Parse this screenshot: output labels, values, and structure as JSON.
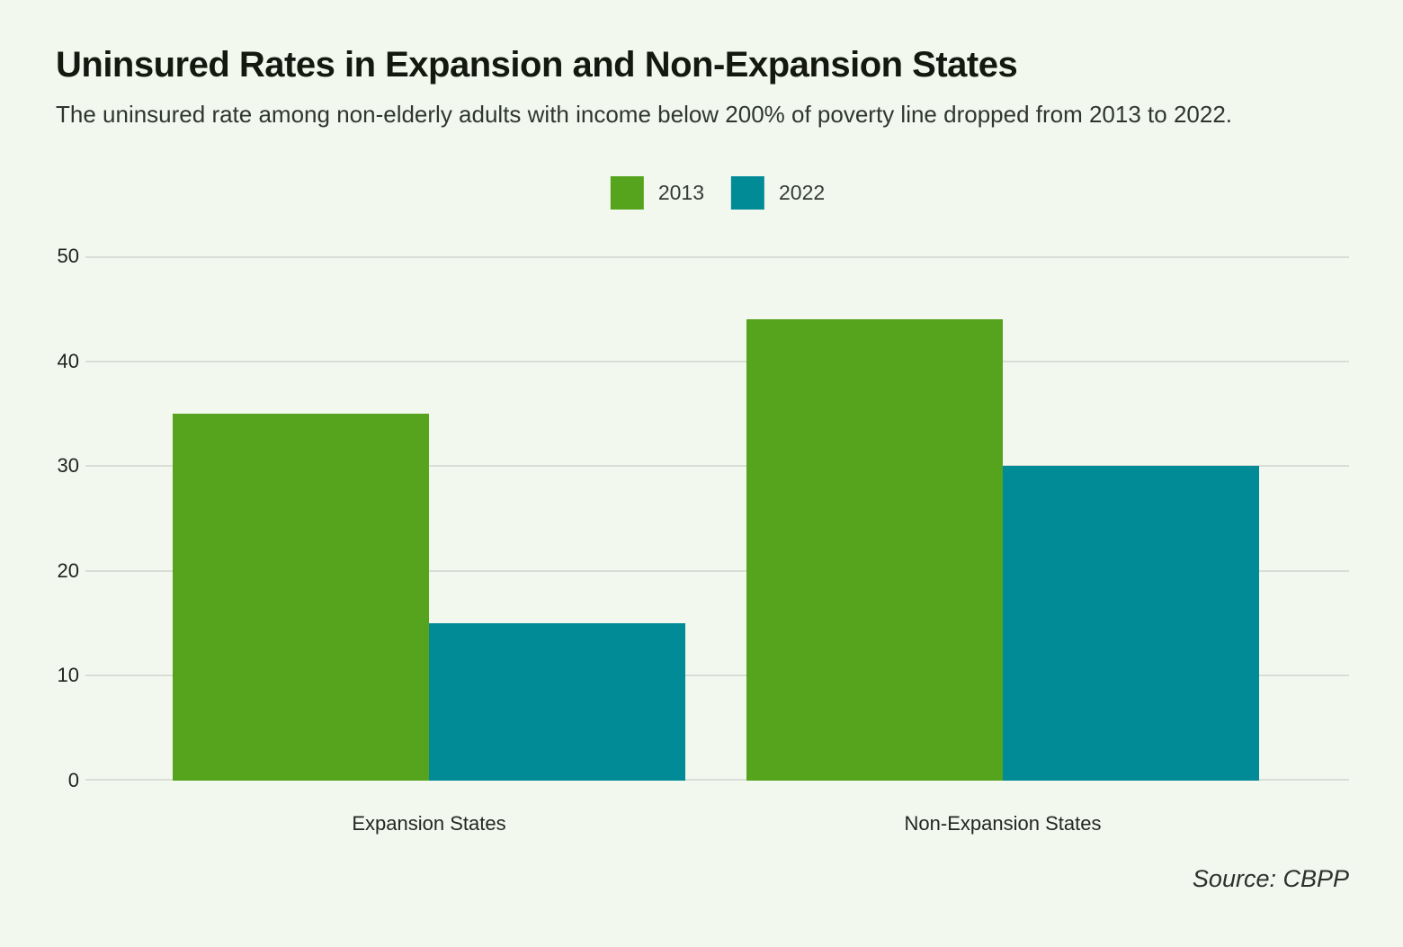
{
  "header": {
    "title": "Uninsured Rates in Expansion and Non-Expansion States",
    "subtitle": "The uninsured rate among non-elderly adults with income below 200% of poverty line dropped from 2013 to 2022."
  },
  "legend": {
    "items": [
      {
        "label": "2013",
        "color": "#56a41e"
      },
      {
        "label": "2022",
        "color": "#008b96"
      }
    ]
  },
  "chart_data": {
    "type": "bar",
    "categories": [
      "Expansion States",
      "Non-Expansion States"
    ],
    "series": [
      {
        "name": "2013",
        "color": "#56a41e",
        "values": [
          35,
          44
        ]
      },
      {
        "name": "2022",
        "color": "#008b96",
        "values": [
          15,
          30
        ]
      }
    ],
    "title": "Uninsured Rates in Expansion and Non-Expansion States",
    "xlabel": "",
    "ylabel": "",
    "ylim": [
      0,
      50
    ],
    "yticks": [
      0,
      10,
      20,
      30,
      40,
      50
    ],
    "grid": true,
    "legend_position": "top-center"
  },
  "source": {
    "label": "Source: CBPP"
  },
  "colors": {
    "background": "#f3f8ef",
    "gridline": "#d8ddd6",
    "title_text": "#14180f",
    "body_text": "#2f362e"
  }
}
